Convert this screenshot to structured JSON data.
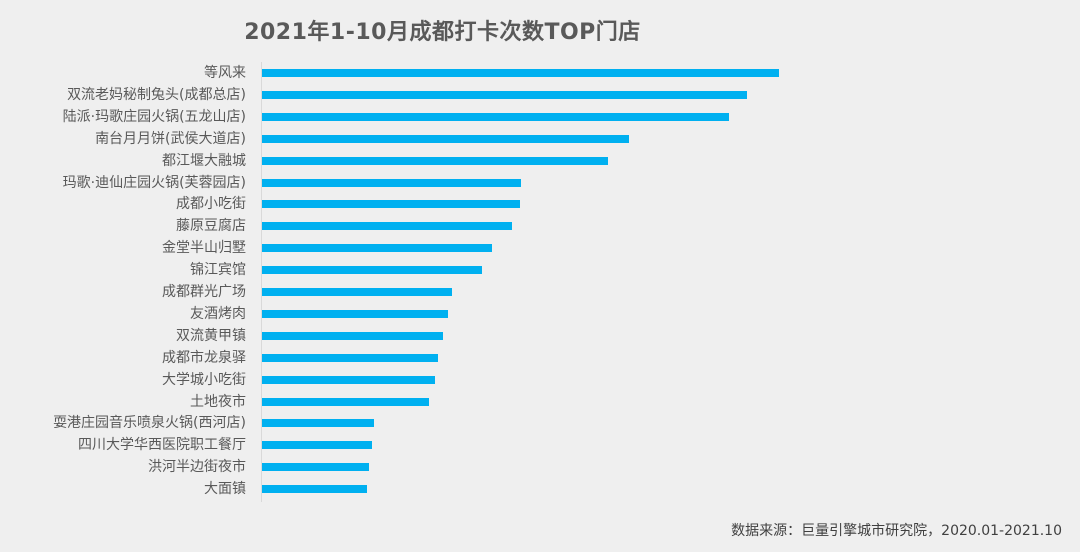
{
  "chart_data": {
    "type": "bar",
    "orientation": "horizontal",
    "title": "2021年1-10月成都打卡次数TOP门店",
    "xlabel": "",
    "ylabel": "",
    "grid": false,
    "legend": null,
    "value_axis_visible": false,
    "value_units": "relative (no axis ticks shown; bar length in px)",
    "bar_color": "#00b0f0",
    "categories": [
      "等风来",
      "双流老妈秘制兔头(成都总店)",
      "陆派·玛歌庄园火锅(五龙山店)",
      "南台月月饼(武侯大道店)",
      "都江堰大融城",
      "玛歌·迪仙庄园火锅(芙蓉园店)",
      "成都小吃街",
      "藤原豆腐店",
      "金堂半山归墅",
      "锦江宾馆",
      "成都群光广场",
      "友酒烤肉",
      "双流黄甲镇",
      "成都市龙泉驿",
      "大学城小吃街",
      "土地夜市",
      "耍港庄园音乐喷泉火锅(西河店)",
      "四川大学华西医院职工餐厅",
      "洪河半边街夜市",
      "大面镇"
    ],
    "values": [
      517,
      485,
      467,
      367,
      346,
      259,
      258,
      250,
      230,
      220,
      190,
      186,
      181,
      176,
      173,
      167,
      112,
      110,
      107,
      105
    ],
    "source": "数据来源：巨量引擎城市研究院，2020.01-2021.10"
  }
}
